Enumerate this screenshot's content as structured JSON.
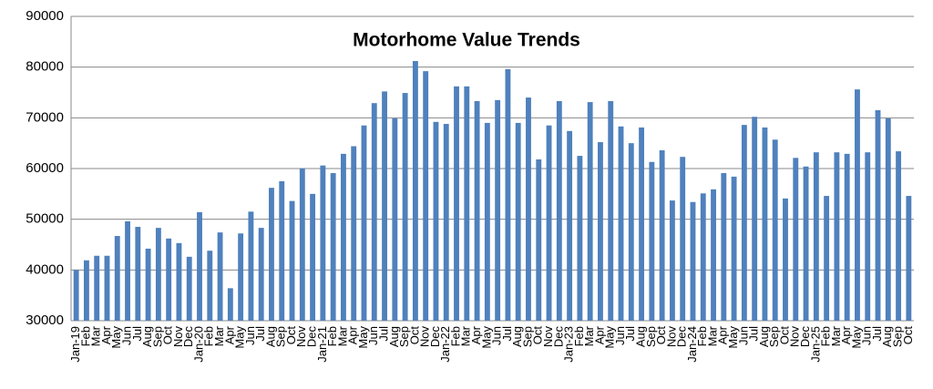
{
  "chart_data": {
    "type": "bar",
    "title": "Motorhome Value Trends",
    "categories": [
      "Jan-19",
      "Feb",
      "Mar",
      "Apr",
      "May",
      "Jun",
      "Jul",
      "Aug",
      "Sep",
      "Oct",
      "Nov",
      "Dec",
      "Jan-20",
      "Feb",
      "Mar",
      "Apr",
      "May",
      "Jun",
      "Jul",
      "Aug",
      "Sep",
      "Oct",
      "Nov",
      "Dec",
      "Jan-21",
      "Feb",
      "Mar",
      "Apr",
      "May",
      "Jun",
      "Jul",
      "Aug",
      "Sep",
      "Oct",
      "Nov",
      "Dec",
      "Jan-22",
      "Feb",
      "Mar",
      "Apr",
      "May",
      "Jun",
      "Jul",
      "Aug",
      "Sep",
      "Oct",
      "Nov",
      "Dec",
      "Jan-23",
      "Feb",
      "Mar",
      "Apr",
      "May",
      "Jun",
      "Jul",
      "Aug",
      "Sep",
      "Oct",
      "Nov",
      "Dec",
      "Jan-24",
      "Feb",
      "Mar",
      "Apr",
      "May",
      "Jun",
      "Jul",
      "Aug",
      "Sep",
      "Oct",
      "Nov",
      "Dec",
      "Jan-25",
      "Feb",
      "Mar",
      "Apr",
      "May",
      "Jun",
      "Jul",
      "Aug",
      "Sep",
      "Oct"
    ],
    "values": [
      40000,
      41900,
      42800,
      42800,
      46700,
      49600,
      48500,
      44200,
      48300,
      46200,
      45300,
      42600,
      51400,
      43800,
      47400,
      36400,
      47200,
      51500,
      48300,
      56200,
      57500,
      53600,
      60000,
      55000,
      60600,
      59100,
      62900,
      64400,
      68500,
      72900,
      75200,
      69900,
      74900,
      81200,
      79200,
      69200,
      68800,
      76200,
      76200,
      73300,
      69000,
      73500,
      79600,
      69000,
      74000,
      61800,
      68500,
      73300,
      67400,
      62500,
      73100,
      65200,
      73300,
      68300,
      65000,
      68100,
      61300,
      63600,
      53700,
      62300,
      53400,
      55100,
      55900,
      59100,
      58400,
      68600,
      70200,
      68100,
      65700,
      54100,
      62100,
      60400,
      63200,
      54600,
      63200,
      62900,
      75600,
      63200,
      71500,
      69900,
      63400,
      54600
    ],
    "color": "#4f81bd",
    "ylim": [
      30000,
      90000
    ],
    "yticks": [
      30000,
      40000,
      50000,
      60000,
      70000,
      80000,
      90000
    ],
    "grid": true
  }
}
